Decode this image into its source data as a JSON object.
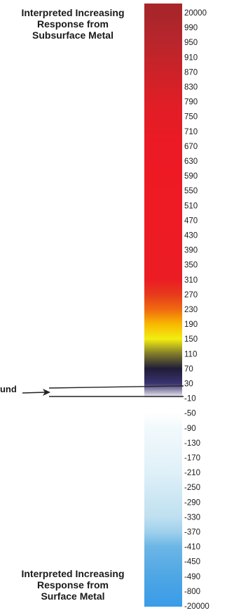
{
  "chart_data": {
    "type": "heatmap",
    "title_top": [
      "Interpreted Increasing",
      "Response from",
      "Subsurface Metal"
    ],
    "title_bottom": [
      "Interpreted Increasing",
      "Response from",
      "Surface Metal"
    ],
    "background_label": "ound",
    "tick_labels": [
      "20000",
      "990",
      "950",
      "910",
      "870",
      "830",
      "790",
      "750",
      "710",
      "670",
      "630",
      "590",
      "550",
      "510",
      "470",
      "430",
      "390",
      "350",
      "310",
      "270",
      "230",
      "190",
      "150",
      "110",
      "70",
      "30",
      "-10",
      "-50",
      "-90",
      "-130",
      "-170",
      "-210",
      "-250",
      "-290",
      "-330",
      "-370",
      "-410",
      "-450",
      "-490",
      "-800",
      "-20000"
    ],
    "color_stops": [
      {
        "value": "20000",
        "color": "#a8252a"
      },
      {
        "value": "950",
        "color": "#b8262c"
      },
      {
        "value": "870",
        "color": "#cc2228"
      },
      {
        "value": "790",
        "color": "#df1e26"
      },
      {
        "value": "670",
        "color": "#ec1a24"
      },
      {
        "value": "510",
        "color": "#ee1a24"
      },
      {
        "value": "310",
        "color": "#ec1c24"
      },
      {
        "value": "270",
        "color": "#e63a1c"
      },
      {
        "value": "230",
        "color": "#f06a10"
      },
      {
        "value": "190",
        "color": "#f8b800"
      },
      {
        "value": "150",
        "color": "#f2ee10"
      },
      {
        "value": "110",
        "color": "#7f7a2a"
      },
      {
        "value": "70",
        "color": "#201c38"
      },
      {
        "value": "30",
        "color": "#3a3470"
      },
      {
        "value": "-10",
        "color": "#ffffff"
      },
      {
        "value": "-50",
        "color": "#ffffff"
      },
      {
        "value": "-90",
        "color": "#f2f9fc"
      },
      {
        "value": "-210",
        "color": "#dff0f8"
      },
      {
        "value": "-330",
        "color": "#bfe0f0"
      },
      {
        "value": "-370",
        "color": "#9fd0ec"
      },
      {
        "value": "-410",
        "color": "#6cb6e6"
      },
      {
        "value": "-490",
        "color": "#4ea6e4"
      },
      {
        "value": "-20000",
        "color": "#3a9ce8"
      }
    ]
  }
}
